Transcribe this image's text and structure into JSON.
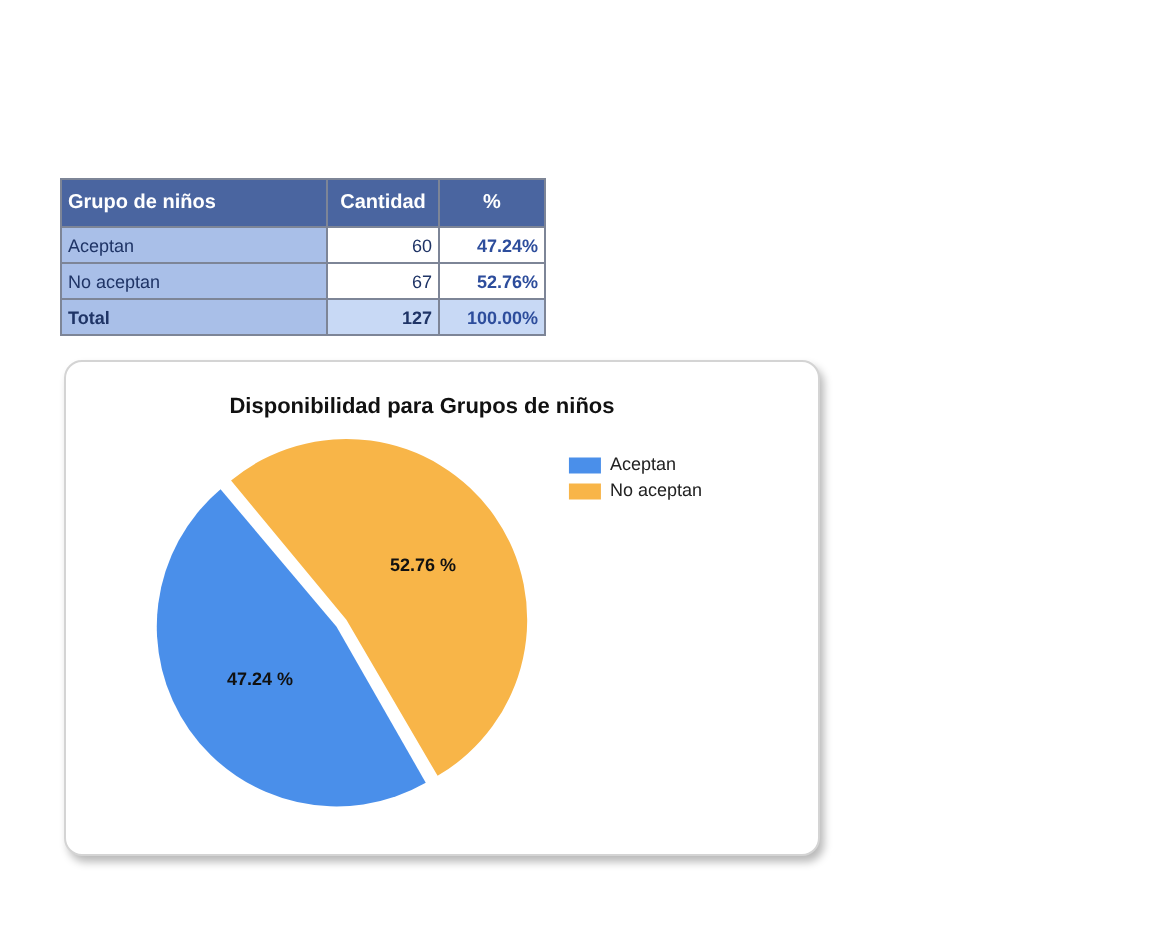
{
  "chart_data": [
    {
      "type": "other",
      "annotations": [
        "Grupo de niños",
        "Cantidad",
        "%",
        "Aceptan",
        "60",
        "47.24%",
        "No aceptan",
        "67",
        "52.76%",
        "Total",
        "127",
        "100.00%"
      ]
    },
    {
      "type": "pie",
      "title": "Disponibilidad para Grupos de niños",
      "categories": [
        "Aceptan",
        "No aceptan"
      ],
      "values": [
        47.24,
        52.76
      ],
      "colors": [
        "#4a8fea",
        "#f8b548"
      ],
      "value_labels": [
        "47.24 %",
        "52.76 %"
      ],
      "legend": "top right"
    }
  ]
}
